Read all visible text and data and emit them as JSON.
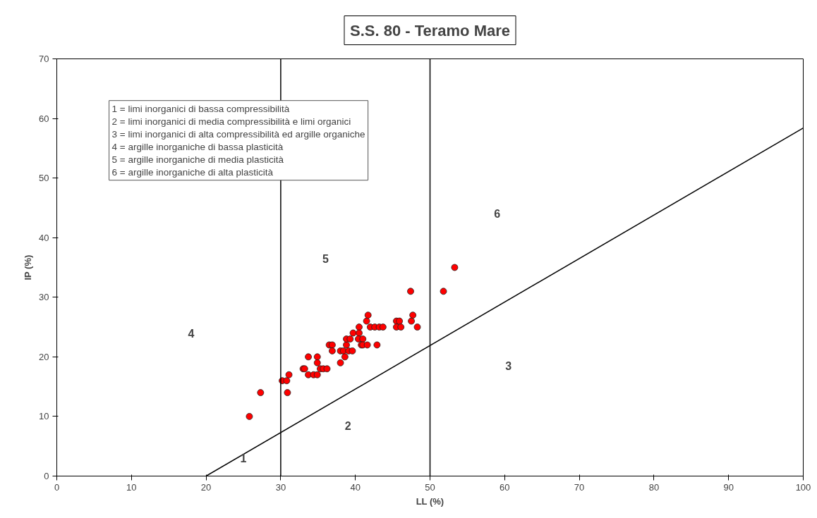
{
  "chart_data": {
    "type": "scatter",
    "title": "S.S. 80 - Teramo Mare",
    "xlabel": "LL (%)",
    "ylabel": "IP (%)",
    "xlim": [
      0,
      100
    ],
    "ylim": [
      0,
      70
    ],
    "xticks": [
      0,
      10,
      20,
      30,
      40,
      50,
      60,
      70,
      80,
      90,
      100
    ],
    "yticks": [
      0,
      10,
      20,
      30,
      40,
      50,
      60,
      70
    ],
    "grid": false,
    "marker": "circle",
    "series": [
      {
        "color": "#ff0000",
        "x": [
          25.8,
          27.3,
          30.2,
          30.8,
          30.9,
          31.1,
          33.0,
          33.2,
          33.7,
          33.7,
          34.4,
          34.9,
          34.9,
          34.9,
          35.3,
          35.7,
          36.2,
          36.5,
          36.9,
          36.9,
          38.0,
          38.0,
          38.4,
          38.6,
          38.8,
          38.8,
          39.3,
          39.1,
          39.6,
          39.7,
          40.5,
          40.5,
          40.4,
          41.0,
          40.8,
          41.0,
          41.6,
          41.5,
          41.7,
          42.0,
          42.6,
          43.2,
          43.7,
          42.9,
          45.5,
          45.9,
          45.5,
          46.1,
          47.4,
          47.7,
          47.5,
          48.3,
          51.8,
          53.3
        ],
        "values": [
          10,
          14,
          16,
          16,
          14,
          17,
          18,
          18,
          20,
          17,
          17,
          17,
          20,
          19,
          18,
          18,
          18,
          22,
          22,
          21,
          19,
          21,
          21,
          20,
          22,
          23,
          23,
          21,
          21,
          24,
          25,
          24,
          23,
          23,
          22,
          22,
          22,
          26,
          27,
          25,
          25,
          25,
          25,
          22,
          26,
          26,
          25,
          25,
          31,
          27,
          26,
          25,
          31,
          35
        ]
      },
      {
        "type": "line",
        "marker": "none",
        "color": "#000000",
        "x": [
          20,
          100
        ],
        "values": [
          0,
          58.4
        ]
      }
    ],
    "ref_lines": [
      {
        "axis": "x",
        "value": 30,
        "color": "#000000"
      },
      {
        "axis": "x",
        "value": 50,
        "color": "#000000"
      }
    ],
    "annotations": [
      "1",
      "2",
      "3",
      "4",
      "5",
      "6",
      "1 = limi inorganici di bassa compressibilità",
      "2 = limi inorganici di media compressibilità e limi organici",
      "3 = limi inorganici di alta compressibilità ed argille organiche",
      "4 = argille inorganiche di bassa plasticità",
      "5 = argille inorganiche di media plasticità",
      "6 = argille inorganiche di alta plasticità"
    ]
  }
}
